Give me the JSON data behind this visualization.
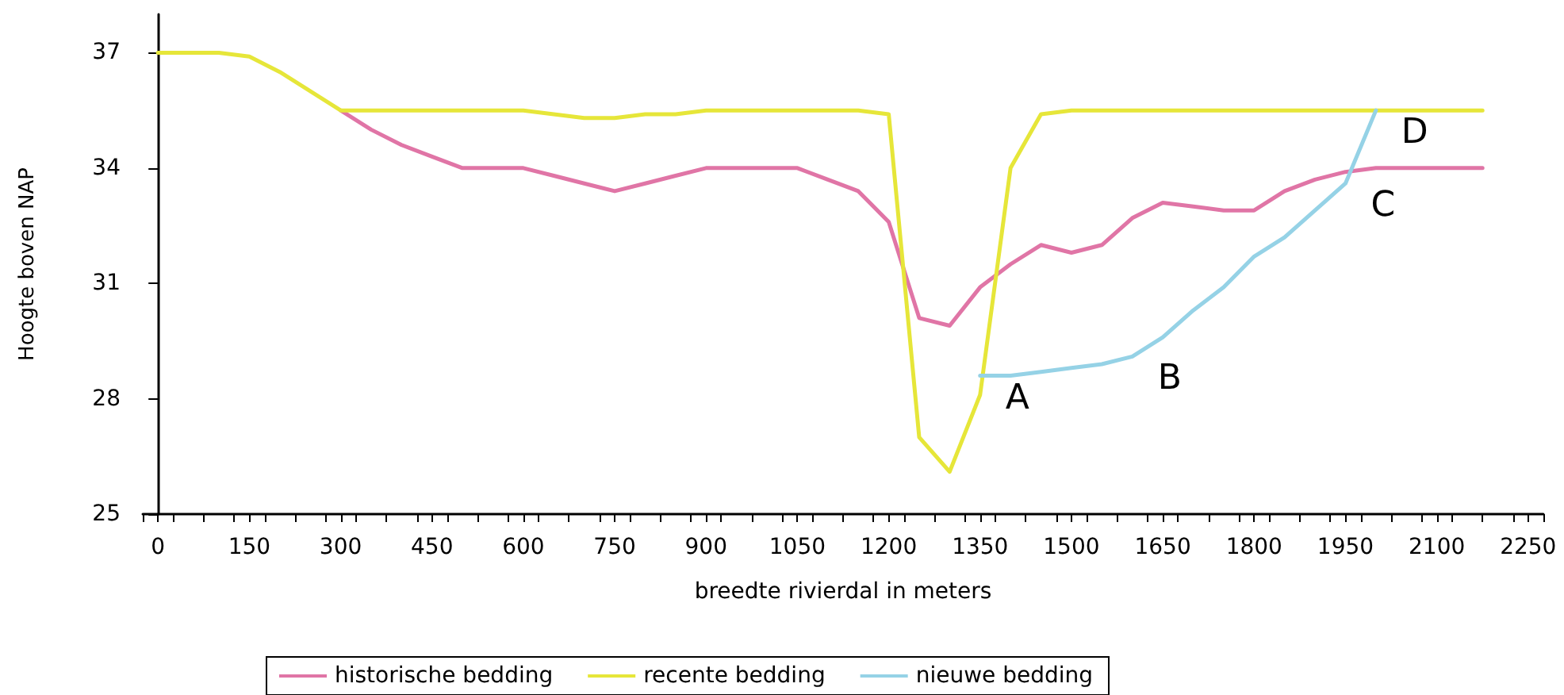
{
  "chart_data": {
    "type": "line",
    "xlabel": "breedte rivierdal in meters",
    "ylabel": "Hoogte boven NAP",
    "xlim": [
      -25,
      2275
    ],
    "xticks": [
      0,
      150,
      300,
      450,
      600,
      750,
      900,
      1050,
      1200,
      1350,
      1500,
      1650,
      1800,
      1950,
      2100,
      2250,
      {
        "value": -25,
        "label": null
      },
      {
        "value": 25,
        "label": null
      },
      {
        "value": 75,
        "label": null
      },
      {
        "value": 125,
        "label": null
      },
      {
        "value": 175,
        "label": null
      },
      {
        "value": 225,
        "label": null
      },
      {
        "value": 275,
        "label": null
      },
      {
        "value": 325,
        "label": null
      },
      {
        "value": 375,
        "label": null
      },
      {
        "value": 425,
        "label": null
      },
      {
        "value": 475,
        "label": null
      },
      {
        "value": 525,
        "label": null
      },
      {
        "value": 575,
        "label": null
      },
      {
        "value": 625,
        "label": null
      },
      {
        "value": 675,
        "label": null
      },
      {
        "value": 725,
        "label": null
      },
      {
        "value": 775,
        "label": null
      },
      {
        "value": 825,
        "label": null
      },
      {
        "value": 875,
        "label": null
      },
      {
        "value": 925,
        "label": null
      },
      {
        "value": 975,
        "label": null
      },
      {
        "value": 1025,
        "label": null
      },
      {
        "value": 1075,
        "label": null
      },
      {
        "value": 1125,
        "label": null
      },
      {
        "value": 1175,
        "label": null
      },
      {
        "value": 1225,
        "label": null
      },
      {
        "value": 1275,
        "label": null
      },
      {
        "value": 1325,
        "label": null
      },
      {
        "value": 1375,
        "label": null
      },
      {
        "value": 1425,
        "label": null
      },
      {
        "value": 1475,
        "label": null
      },
      {
        "value": 1525,
        "label": null
      },
      {
        "value": 1575,
        "label": null
      },
      {
        "value": 1625,
        "label": null
      },
      {
        "value": 1675,
        "label": null
      },
      {
        "value": 1725,
        "label": null
      },
      {
        "value": 1775,
        "label": null
      },
      {
        "value": 1825,
        "label": null
      },
      {
        "value": 1875,
        "label": null
      },
      {
        "value": 1925,
        "label": null
      },
      {
        "value": 1975,
        "label": null
      },
      {
        "value": 2025,
        "label": null
      },
      {
        "value": 2075,
        "label": null
      },
      {
        "value": 2125,
        "label": null
      },
      {
        "value": 2175,
        "label": null
      },
      {
        "value": 2225,
        "label": null
      },
      {
        "value": 2275,
        "label": null
      }
    ],
    "ylim": [
      25,
      38
    ],
    "yticks": [
      25,
      28,
      31,
      34,
      37
    ],
    "grid": false,
    "legend": "bottom",
    "marker": "none",
    "line_style": "solid",
    "series": [
      {
        "name": "historische bedding",
        "color": "#e075a6",
        "x": [
          300,
          350,
          400,
          450,
          500,
          550,
          600,
          650,
          700,
          750,
          800,
          850,
          900,
          950,
          1000,
          1050,
          1100,
          1150,
          1200,
          1250,
          1300,
          1350,
          1400,
          1450,
          1500,
          1550,
          1600,
          1650,
          1700,
          1750,
          1800,
          1850,
          1900,
          1950,
          2000,
          2050,
          2100,
          2175
        ],
        "values": [
          35.5,
          35.0,
          34.6,
          34.3,
          34.0,
          34.0,
          34.0,
          33.8,
          33.6,
          33.4,
          33.6,
          33.8,
          34.0,
          34.0,
          34.0,
          34.0,
          33.7,
          33.4,
          32.6,
          30.1,
          29.9,
          30.9,
          31.5,
          32.0,
          31.8,
          32.0,
          32.7,
          33.1,
          33.0,
          32.9,
          32.9,
          33.4,
          33.7,
          33.9,
          34.0,
          34.0,
          34.0,
          34.0
        ]
      },
      {
        "name": "recente bedding",
        "color": "#e6e639",
        "x": [
          0,
          50,
          100,
          150,
          200,
          250,
          300,
          350,
          400,
          450,
          500,
          550,
          600,
          650,
          700,
          750,
          800,
          850,
          900,
          950,
          1000,
          1050,
          1100,
          1150,
          1200,
          1250,
          1300,
          1350,
          1400,
          1450,
          1500,
          1550,
          1600,
          1650,
          1700,
          1750,
          1800,
          1850,
          1900,
          1950,
          2000,
          2050,
          2100,
          2175
        ],
        "values": [
          37,
          37,
          37,
          36.9,
          36.5,
          36.0,
          35.5,
          35.5,
          35.5,
          35.5,
          35.5,
          35.5,
          35.5,
          35.4,
          35.3,
          35.3,
          35.4,
          35.4,
          35.5,
          35.5,
          35.5,
          35.5,
          35.5,
          35.5,
          35.4,
          27.0,
          26.1,
          28.1,
          34.0,
          35.4,
          35.5,
          35.5,
          35.5,
          35.5,
          35.5,
          35.5,
          35.5,
          35.5,
          35.5,
          35.5,
          35.5,
          35.5,
          35.5,
          35.5
        ]
      },
      {
        "name": "nieuwe bedding",
        "color": "#95d2e6",
        "x": [
          1350,
          1400,
          1450,
          1500,
          1550,
          1600,
          1650,
          1700,
          1750,
          1800,
          1850,
          1900,
          1950,
          2000
        ],
        "values": [
          28.6,
          28.6,
          28.7,
          28.8,
          28.9,
          29.1,
          29.6,
          30.3,
          30.9,
          31.7,
          32.2,
          32.9,
          33.6,
          35.5
        ]
      }
    ],
    "annotations": [
      {
        "text": "A",
        "x": 1350,
        "y": 28.6
      },
      {
        "text": "B",
        "x": 1600,
        "y": 29.1
      },
      {
        "text": "C",
        "x": 1950,
        "y": 33.6
      },
      {
        "text": "D",
        "x": 2000,
        "y": 35.5
      }
    ]
  }
}
